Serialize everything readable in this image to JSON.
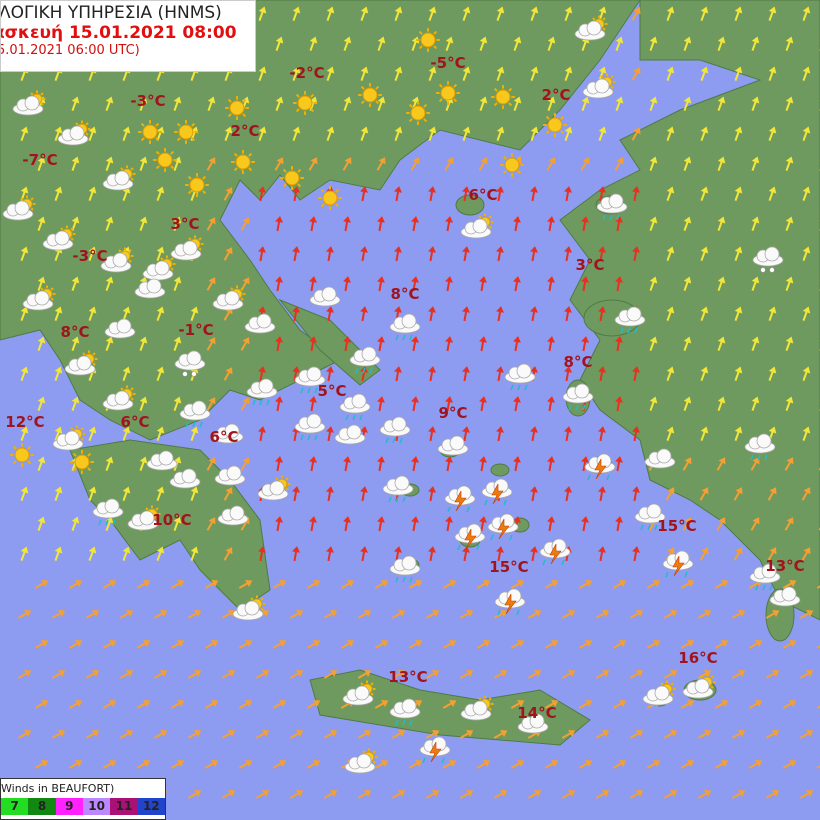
{
  "header": {
    "title": "ΛΟΓΙΚΗ ΥΠΗΡΕΣΙΑ (HNMS)",
    "forecast": "ασκευή 15.01.2021 08:00",
    "issued": "5.01.2021 06:00 UTC)"
  },
  "temperatures": [
    "-2°C",
    "-5°C",
    "2°C",
    "-3°C",
    "2°C",
    "-7°C",
    "6°C",
    "3°C",
    "-3°C",
    "3°C",
    "8°C",
    "8°C",
    "-1°C",
    "8°C",
    "5°C",
    "9°C",
    "12°C",
    "6°C",
    "6°C",
    "10°C",
    "15°C",
    "15°C",
    "13°C",
    "16°C",
    "13°C",
    "14°C"
  ],
  "legend": {
    "title": "Winds in BEAUFORT)",
    "levels": [
      {
        "label": "7",
        "color": "#22dd22"
      },
      {
        "label": "8",
        "color": "#118811"
      },
      {
        "label": "9",
        "color": "#ff22ff"
      },
      {
        "label": "10",
        "color": "#bb88ff"
      },
      {
        "label": "11",
        "color": "#aa1177"
      },
      {
        "label": "12",
        "color": "#2244cc"
      }
    ]
  },
  "colors": {
    "sea": "#8d9cf0",
    "land": "#6f9a5f",
    "wind_weak": "#f2e63a",
    "wind_moderate": "#f5a030",
    "wind_strong": "#e83020"
  },
  "icon_types": [
    "sun-icon",
    "cloud-icon",
    "rain-cloud-icon",
    "thunderstorm-icon",
    "snow-cloud-icon",
    "sun-cloud-icon"
  ]
}
